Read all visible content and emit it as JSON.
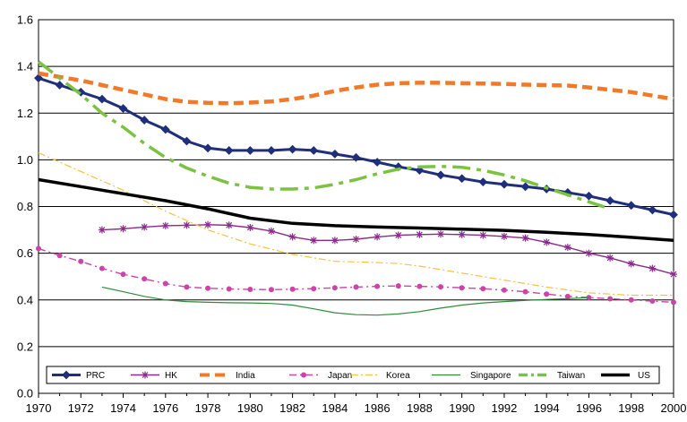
{
  "chart_data": {
    "type": "line",
    "title": "",
    "xlabel": "",
    "ylabel": "",
    "xlim": [
      1970,
      2000
    ],
    "ylim": [
      0,
      1.6
    ],
    "grid": "horizontal",
    "legend_position": "bottom-inside",
    "x_ticks": [
      "1970",
      "1972",
      "1974",
      "1976",
      "1978",
      "1980",
      "1982",
      "1984",
      "1986",
      "1988",
      "1990",
      "1992",
      "1994",
      "1996",
      "1998",
      "2000"
    ],
    "y_ticks": [
      "0.0",
      "0.2",
      "0.4",
      "0.6",
      "0.8",
      "1.0",
      "1.2",
      "1.4",
      "1.6"
    ],
    "series": [
      {
        "name": "PRC",
        "color": "#1f2f7a",
        "style": "solid-diamond",
        "x": [
          1970,
          1971,
          1972,
          1973,
          1974,
          1975,
          1976,
          1977,
          1978,
          1979,
          1980,
          1981,
          1982,
          1983,
          1984,
          1985,
          1986,
          1987,
          1988,
          1989,
          1990,
          1991,
          1992,
          1993,
          1994,
          1995,
          1996,
          1997,
          1998,
          1999,
          2000
        ],
        "y": [
          1.35,
          1.32,
          1.29,
          1.26,
          1.22,
          1.17,
          1.13,
          1.08,
          1.05,
          1.04,
          1.04,
          1.04,
          1.045,
          1.04,
          1.025,
          1.01,
          0.99,
          0.97,
          0.955,
          0.935,
          0.92,
          0.905,
          0.895,
          0.885,
          0.875,
          0.86,
          0.845,
          0.825,
          0.805,
          0.785,
          0.765
        ]
      },
      {
        "name": "HK",
        "color": "#8a2a8a",
        "style": "solid-star",
        "x": [
          1973,
          1974,
          1975,
          1976,
          1977,
          1978,
          1979,
          1980,
          1981,
          1982,
          1983,
          1984,
          1985,
          1986,
          1987,
          1988,
          1989,
          1990,
          1991,
          1992,
          1993,
          1994,
          1995,
          1996,
          1997,
          1998,
          1999,
          2000
        ],
        "y": [
          0.7,
          0.705,
          0.712,
          0.718,
          0.72,
          0.722,
          0.72,
          0.71,
          0.695,
          0.67,
          0.655,
          0.655,
          0.66,
          0.67,
          0.677,
          0.68,
          0.682,
          0.68,
          0.677,
          0.672,
          0.665,
          0.647,
          0.625,
          0.6,
          0.58,
          0.555,
          0.535,
          0.51
        ]
      },
      {
        "name": "India",
        "color": "#f07a2a",
        "style": "thick-dash",
        "x": [
          1970,
          1971,
          1972,
          1973,
          1974,
          1975,
          1976,
          1977,
          1978,
          1979,
          1980,
          1981,
          1982,
          1983,
          1984,
          1985,
          1986,
          1987,
          1988,
          1989,
          1990,
          1991,
          1992,
          1993,
          1994,
          1995,
          1996,
          1997,
          1998,
          1999,
          2000
        ],
        "y": [
          1.37,
          1.355,
          1.34,
          1.32,
          1.3,
          1.28,
          1.26,
          1.248,
          1.244,
          1.242,
          1.245,
          1.25,
          1.26,
          1.275,
          1.295,
          1.31,
          1.322,
          1.328,
          1.33,
          1.33,
          1.328,
          1.327,
          1.325,
          1.322,
          1.32,
          1.318,
          1.31,
          1.3,
          1.29,
          1.275,
          1.26
        ]
      },
      {
        "name": "Japan",
        "color": "#cc44aa",
        "style": "dashdot-circle",
        "x": [
          1970,
          1971,
          1972,
          1973,
          1974,
          1975,
          1976,
          1977,
          1978,
          1979,
          1980,
          1981,
          1982,
          1983,
          1984,
          1985,
          1986,
          1987,
          1988,
          1989,
          1990,
          1991,
          1992,
          1993,
          1994,
          1995,
          1996,
          1997,
          1998,
          1999,
          2000
        ],
        "y": [
          0.62,
          0.59,
          0.565,
          0.535,
          0.51,
          0.49,
          0.47,
          0.455,
          0.45,
          0.447,
          0.445,
          0.444,
          0.446,
          0.448,
          0.452,
          0.455,
          0.458,
          0.46,
          0.458,
          0.456,
          0.452,
          0.448,
          0.442,
          0.435,
          0.425,
          0.415,
          0.41,
          0.405,
          0.4,
          0.395,
          0.39
        ]
      },
      {
        "name": "Korea",
        "color": "#f5c242",
        "style": "dashdot-thin",
        "x": [
          1970,
          1972,
          1974,
          1976,
          1978,
          1980,
          1982,
          1984,
          1986,
          1987,
          1988,
          1990,
          1992,
          1994,
          1996,
          1998,
          2000
        ],
        "y": [
          1.03,
          0.95,
          0.87,
          0.78,
          0.7,
          0.64,
          0.595,
          0.565,
          0.56,
          0.556,
          0.545,
          0.515,
          0.485,
          0.455,
          0.43,
          0.42,
          0.42
        ]
      },
      {
        "name": "Singapore",
        "color": "#2e8b3a",
        "style": "solid-thin",
        "x": [
          1973,
          1974,
          1975,
          1976,
          1977,
          1978,
          1979,
          1980,
          1981,
          1982,
          1983,
          1984,
          1985,
          1986,
          1987,
          1988,
          1989,
          1990,
          1991,
          1992,
          1993,
          1994,
          1995,
          1996
        ],
        "y": [
          0.455,
          0.435,
          0.415,
          0.4,
          0.393,
          0.39,
          0.388,
          0.387,
          0.385,
          0.378,
          0.362,
          0.345,
          0.337,
          0.335,
          0.34,
          0.35,
          0.365,
          0.378,
          0.387,
          0.393,
          0.398,
          0.402,
          0.405,
          0.41
        ]
      },
      {
        "name": "Taiwan",
        "color": "#7cc242",
        "style": "thick-longdash-dot",
        "x": [
          1970,
          1971,
          1972,
          1973,
          1974,
          1975,
          1976,
          1977,
          1978,
          1979,
          1980,
          1981,
          1982,
          1983,
          1984,
          1985,
          1986,
          1987,
          1988,
          1989,
          1990,
          1991,
          1992,
          1993,
          1994,
          1995,
          1996,
          1997
        ],
        "y": [
          1.42,
          1.35,
          1.28,
          1.2,
          1.14,
          1.07,
          1.01,
          0.965,
          0.93,
          0.9,
          0.882,
          0.875,
          0.875,
          0.88,
          0.895,
          0.915,
          0.94,
          0.96,
          0.97,
          0.972,
          0.968,
          0.955,
          0.935,
          0.91,
          0.88,
          0.85,
          0.82,
          0.79
        ]
      },
      {
        "name": "US",
        "color": "#000000",
        "style": "thick-solid",
        "x": [
          1970,
          1972,
          1974,
          1976,
          1978,
          1980,
          1982,
          1984,
          1986,
          1988,
          1990,
          1992,
          1994,
          1996,
          1998,
          2000
        ],
        "y": [
          0.915,
          0.885,
          0.855,
          0.825,
          0.79,
          0.75,
          0.728,
          0.718,
          0.712,
          0.708,
          0.703,
          0.698,
          0.69,
          0.68,
          0.668,
          0.655
        ]
      }
    ]
  }
}
